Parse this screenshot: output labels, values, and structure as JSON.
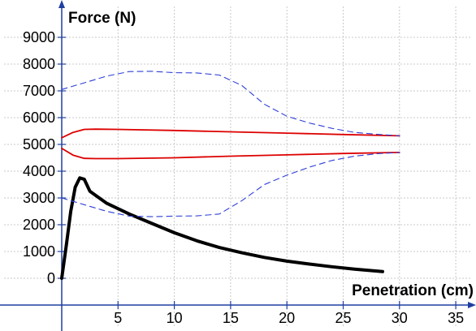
{
  "chart_data": {
    "type": "line",
    "xlabel": "Penetration (cm)",
    "ylabel": "Force (N)",
    "xlim": [
      -5,
      36.5
    ],
    "ylim": [
      -1000,
      10000
    ],
    "xticks": [
      5,
      10,
      15,
      20,
      25,
      30,
      35
    ],
    "yticks": [
      0,
      1000,
      2000,
      3000,
      4000,
      5000,
      6000,
      7000,
      8000,
      9000
    ],
    "grid": true,
    "series": [
      {
        "color": "#000000",
        "style": "solid",
        "points": [
          [
            0,
            0
          ],
          [
            0.4,
            1200
          ],
          [
            0.8,
            2500
          ],
          [
            1.2,
            3400
          ],
          [
            1.6,
            3750
          ],
          [
            2.0,
            3700
          ],
          [
            2.5,
            3250
          ],
          [
            3,
            3100
          ],
          [
            4,
            2800
          ],
          [
            6,
            2400
          ],
          [
            8,
            2050
          ],
          [
            10,
            1700
          ],
          [
            12,
            1400
          ],
          [
            14,
            1150
          ],
          [
            16,
            950
          ],
          [
            18,
            780
          ],
          [
            20,
            640
          ],
          [
            22,
            530
          ],
          [
            24,
            430
          ],
          [
            26,
            340
          ],
          [
            28.5,
            250
          ]
        ]
      },
      {
        "color": "#dd0000",
        "style": "solid",
        "points": [
          [
            0,
            5250
          ],
          [
            1,
            5450
          ],
          [
            2,
            5560
          ],
          [
            3,
            5570
          ],
          [
            5,
            5560
          ],
          [
            10,
            5520
          ],
          [
            15,
            5470
          ],
          [
            20,
            5420
          ],
          [
            25,
            5370
          ],
          [
            30,
            5320
          ]
        ]
      },
      {
        "color": "#dd0000",
        "style": "solid",
        "points": [
          [
            0,
            4850
          ],
          [
            1,
            4600
          ],
          [
            2,
            4480
          ],
          [
            3,
            4470
          ],
          [
            5,
            4470
          ],
          [
            10,
            4500
          ],
          [
            15,
            4560
          ],
          [
            20,
            4610
          ],
          [
            25,
            4660
          ],
          [
            30,
            4700
          ]
        ]
      },
      {
        "color": "#2e3fd6",
        "style": "dashed",
        "points": [
          [
            0,
            7050
          ],
          [
            2,
            7300
          ],
          [
            4,
            7550
          ],
          [
            6,
            7720
          ],
          [
            8,
            7730
          ],
          [
            10,
            7680
          ],
          [
            12,
            7670
          ],
          [
            14,
            7590
          ],
          [
            16,
            7200
          ],
          [
            18,
            6500
          ],
          [
            20,
            6050
          ],
          [
            22,
            5800
          ],
          [
            24,
            5600
          ],
          [
            26,
            5450
          ],
          [
            28,
            5380
          ],
          [
            30,
            5320
          ]
        ]
      },
      {
        "color": "#2e3fd6",
        "style": "dashed",
        "points": [
          [
            0,
            3000
          ],
          [
            2,
            2750
          ],
          [
            4,
            2500
          ],
          [
            6,
            2320
          ],
          [
            8,
            2300
          ],
          [
            10,
            2320
          ],
          [
            12,
            2330
          ],
          [
            14,
            2400
          ],
          [
            16,
            2900
          ],
          [
            18,
            3500
          ],
          [
            20,
            3850
          ],
          [
            22,
            4150
          ],
          [
            24,
            4400
          ],
          [
            26,
            4560
          ],
          [
            28,
            4650
          ],
          [
            30,
            4700
          ]
        ]
      }
    ]
  }
}
